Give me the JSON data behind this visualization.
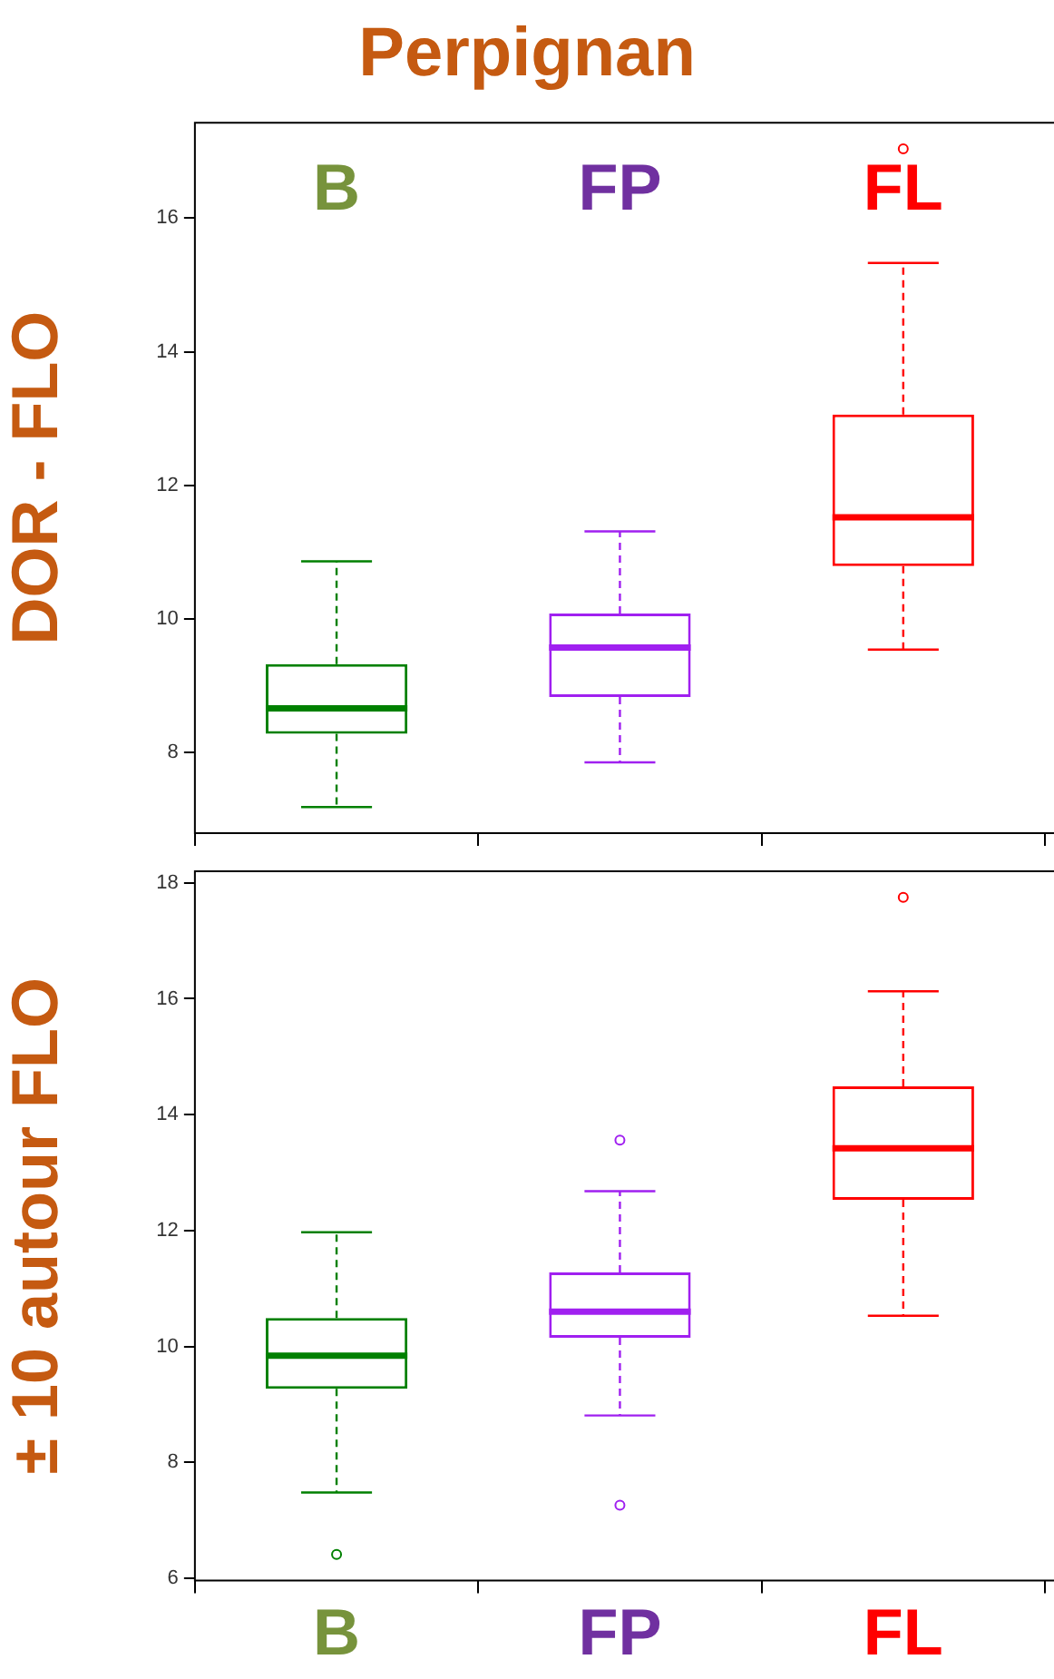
{
  "chart_data": [
    {
      "type": "box",
      "title": "Perpignan",
      "ylabel": "DOR - FLO",
      "categories": [
        "B",
        "FP",
        "FL"
      ],
      "colors": [
        "#008000",
        "#a020f0",
        "#ff0000"
      ],
      "boxes": [
        {
          "low": 7.18,
          "q1": 8.28,
          "median": 8.66,
          "q3": 9.32,
          "high": 10.86
        },
        {
          "low": 7.85,
          "q1": 8.83,
          "median": 9.57,
          "q3": 10.08,
          "high": 11.31
        },
        {
          "low": 9.54,
          "q1": 10.79,
          "median": 11.52,
          "q3": 13.06,
          "high": 15.33,
          "outliers": [
            17.04
          ]
        }
      ],
      "ylim": [
        6.79,
        17.43
      ],
      "yticks": [
        8,
        10,
        12,
        14,
        16
      ],
      "legend": false
    },
    {
      "type": "box",
      "ylabel": "± 10 autour FLO",
      "categories": [
        "B",
        "FP",
        "FL"
      ],
      "colors": [
        "#008000",
        "#a020f0",
        "#ff0000"
      ],
      "boxes": [
        {
          "low": 7.48,
          "q1": 9.27,
          "median": 9.84,
          "q3": 10.49,
          "high": 11.97,
          "outliers": [
            6.41
          ]
        },
        {
          "low": 8.81,
          "q1": 10.15,
          "median": 10.6,
          "q3": 11.28,
          "high": 12.68,
          "outliers": [
            13.56,
            7.26
          ]
        },
        {
          "low": 10.53,
          "q1": 12.53,
          "median": 13.42,
          "q3": 14.49,
          "high": 16.13,
          "outliers": [
            17.75
          ]
        }
      ],
      "ylim": [
        5.96,
        18.2
      ],
      "yticks": [
        6,
        8,
        10,
        12,
        14,
        16,
        18
      ],
      "legend": false
    }
  ]
}
